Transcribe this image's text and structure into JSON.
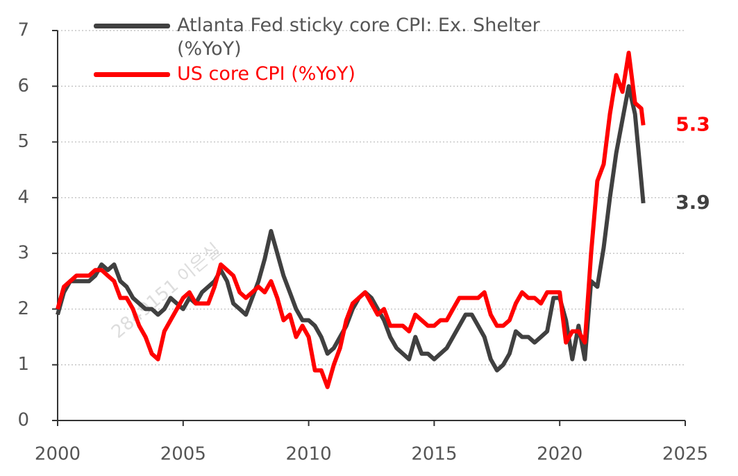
{
  "chart_data": {
    "type": "line",
    "x": [
      2000,
      2000.25,
      2000.5,
      2000.75,
      2001,
      2001.25,
      2001.5,
      2001.75,
      2002,
      2002.25,
      2002.5,
      2002.75,
      2003,
      2003.25,
      2003.5,
      2003.75,
      2004,
      2004.25,
      2004.5,
      2004.75,
      2005,
      2005.25,
      2005.5,
      2005.75,
      2006,
      2006.25,
      2006.5,
      2006.75,
      2007,
      2007.25,
      2007.5,
      2007.75,
      2008,
      2008.25,
      2008.5,
      2008.75,
      2009,
      2009.25,
      2009.5,
      2009.75,
      2010,
      2010.25,
      2010.5,
      2010.75,
      2011,
      2011.25,
      2011.5,
      2011.75,
      2012,
      2012.25,
      2012.5,
      2012.75,
      2013,
      2013.25,
      2013.5,
      2013.75,
      2014,
      2014.25,
      2014.5,
      2014.75,
      2015,
      2015.25,
      2015.5,
      2015.75,
      2016,
      2016.25,
      2016.5,
      2016.75,
      2017,
      2017.25,
      2017.5,
      2017.75,
      2018,
      2018.25,
      2018.5,
      2018.75,
      2019,
      2019.25,
      2019.5,
      2019.75,
      2020,
      2020.25,
      2020.5,
      2020.75,
      2021,
      2021.25,
      2021.5,
      2021.75,
      2022,
      2022.25,
      2022.5,
      2022.75,
      2023,
      2023.25,
      2023.33
    ],
    "series": [
      {
        "name": "Atlanta Fed sticky core CPI: Ex. Shelter (%YoY)",
        "color": "#404040",
        "end_label": "3.9",
        "values": [
          1.9,
          2.3,
          2.5,
          2.5,
          2.5,
          2.5,
          2.6,
          2.8,
          2.7,
          2.8,
          2.5,
          2.4,
          2.2,
          2.1,
          2.0,
          2.0,
          1.9,
          2.0,
          2.2,
          2.1,
          2.0,
          2.2,
          2.1,
          2.3,
          2.4,
          2.5,
          2.7,
          2.5,
          2.1,
          2.0,
          1.9,
          2.2,
          2.5,
          2.9,
          3.4,
          3.0,
          2.6,
          2.3,
          2.0,
          1.8,
          1.8,
          1.7,
          1.5,
          1.2,
          1.3,
          1.5,
          1.7,
          2.0,
          2.2,
          2.3,
          2.2,
          2.0,
          1.8,
          1.5,
          1.3,
          1.2,
          1.1,
          1.5,
          1.2,
          1.2,
          1.1,
          1.2,
          1.3,
          1.5,
          1.7,
          1.9,
          1.9,
          1.7,
          1.5,
          1.1,
          0.9,
          1.0,
          1.2,
          1.6,
          1.5,
          1.5,
          1.4,
          1.5,
          1.6,
          2.2,
          2.2,
          1.8,
          1.1,
          1.7,
          1.1,
          2.5,
          2.4,
          3.1,
          4.0,
          4.8,
          5.4,
          6.0,
          5.5,
          4.3,
          3.9
        ]
      },
      {
        "name": "US core CPI (%YoY)",
        "color": "#ff0000",
        "end_label": "5.3",
        "values": [
          2.0,
          2.4,
          2.5,
          2.6,
          2.6,
          2.6,
          2.7,
          2.7,
          2.6,
          2.5,
          2.2,
          2.2,
          2.0,
          1.7,
          1.5,
          1.2,
          1.1,
          1.6,
          1.8,
          2.0,
          2.2,
          2.3,
          2.1,
          2.1,
          2.1,
          2.4,
          2.8,
          2.7,
          2.6,
          2.3,
          2.2,
          2.3,
          2.4,
          2.3,
          2.5,
          2.2,
          1.8,
          1.9,
          1.5,
          1.7,
          1.5,
          0.9,
          0.9,
          0.6,
          1.0,
          1.3,
          1.8,
          2.1,
          2.2,
          2.3,
          2.1,
          1.9,
          2.0,
          1.7,
          1.7,
          1.7,
          1.6,
          1.9,
          1.8,
          1.7,
          1.7,
          1.8,
          1.8,
          2.0,
          2.2,
          2.2,
          2.2,
          2.2,
          2.3,
          1.9,
          1.7,
          1.7,
          1.8,
          2.1,
          2.3,
          2.2,
          2.2,
          2.1,
          2.3,
          2.3,
          2.3,
          1.4,
          1.6,
          1.6,
          1.4,
          3.0,
          4.3,
          4.6,
          5.5,
          6.2,
          5.9,
          6.6,
          5.7,
          5.6,
          5.3
        ]
      }
    ],
    "xlim": [
      2000,
      2025
    ],
    "xticks": [
      2000,
      2005,
      2010,
      2015,
      2020,
      2025
    ],
    "ylim": [
      0,
      7
    ],
    "yticks": [
      0,
      1,
      2,
      3,
      4,
      5,
      6,
      7
    ],
    "grid": true,
    "legend": "top-left",
    "watermark": "2849151 이은실"
  }
}
